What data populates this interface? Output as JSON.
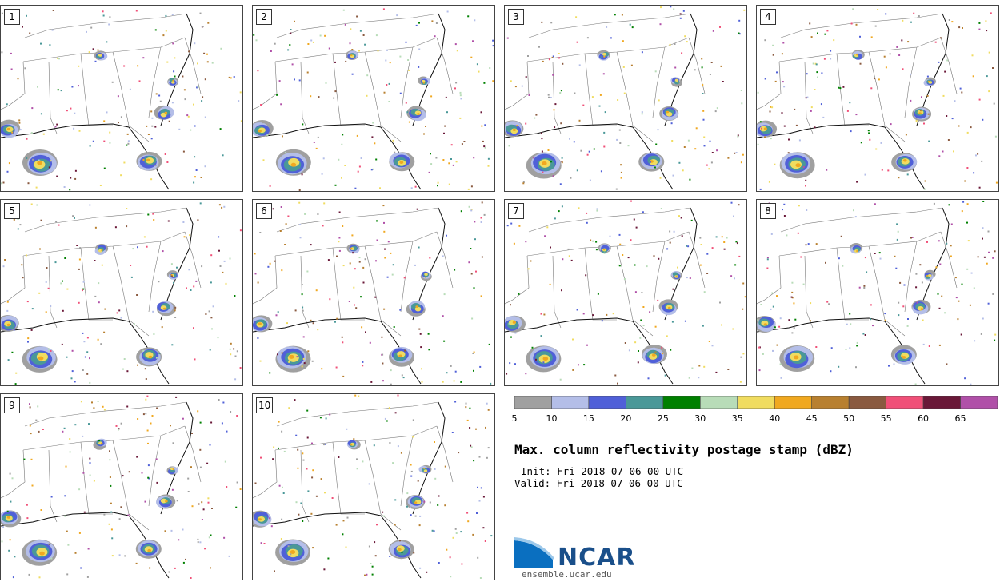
{
  "panels": [
    {
      "label": "1"
    },
    {
      "label": "2"
    },
    {
      "label": "3"
    },
    {
      "label": "4"
    },
    {
      "label": "5"
    },
    {
      "label": "6"
    },
    {
      "label": "7"
    },
    {
      "label": "8"
    },
    {
      "label": "9"
    },
    {
      "label": "10"
    }
  ],
  "colorbar": {
    "colors": [
      "#a0a0a0",
      "#b4bee8",
      "#5060d8",
      "#4a9898",
      "#008000",
      "#b8dcb8",
      "#f0dc60",
      "#f0a820",
      "#b88030",
      "#8a5a40",
      "#f05078",
      "#6a1838",
      "#b050a8"
    ],
    "ticks": [
      "5",
      "10",
      "15",
      "20",
      "25",
      "30",
      "35",
      "40",
      "45",
      "50",
      "55",
      "60",
      "65"
    ]
  },
  "title": "Max. column reflectivity postage stamp (dBZ)",
  "init": "Init: Fri 2018-07-06 00 UTC",
  "valid": "Valid: Fri 2018-07-06 00 UTC",
  "logo": {
    "name": "NCAR",
    "url": "ensemble.ucar.edu"
  }
}
